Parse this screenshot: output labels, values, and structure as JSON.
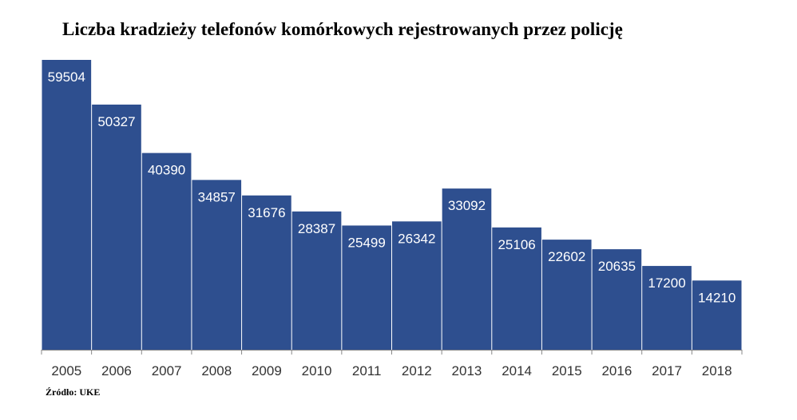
{
  "chart_data": {
    "type": "bar",
    "title": "Liczba kradzieży telefonów komórkowych rejestrowanych przez policję",
    "xlabel": "",
    "ylabel": "",
    "categories": [
      "2005",
      "2006",
      "2007",
      "2008",
      "2009",
      "2010",
      "2011",
      "2012",
      "2013",
      "2014",
      "2015",
      "2016",
      "2017",
      "2018"
    ],
    "values": [
      59504,
      50327,
      40390,
      34857,
      31676,
      28387,
      25499,
      26342,
      33092,
      25106,
      22602,
      20635,
      17200,
      14210
    ],
    "ylim": [
      0,
      59504
    ],
    "grid": false,
    "legend": "none",
    "bar_color": "#2E4F8F",
    "label_color": "#FFFFFF",
    "source": "Źródło: UKE"
  }
}
